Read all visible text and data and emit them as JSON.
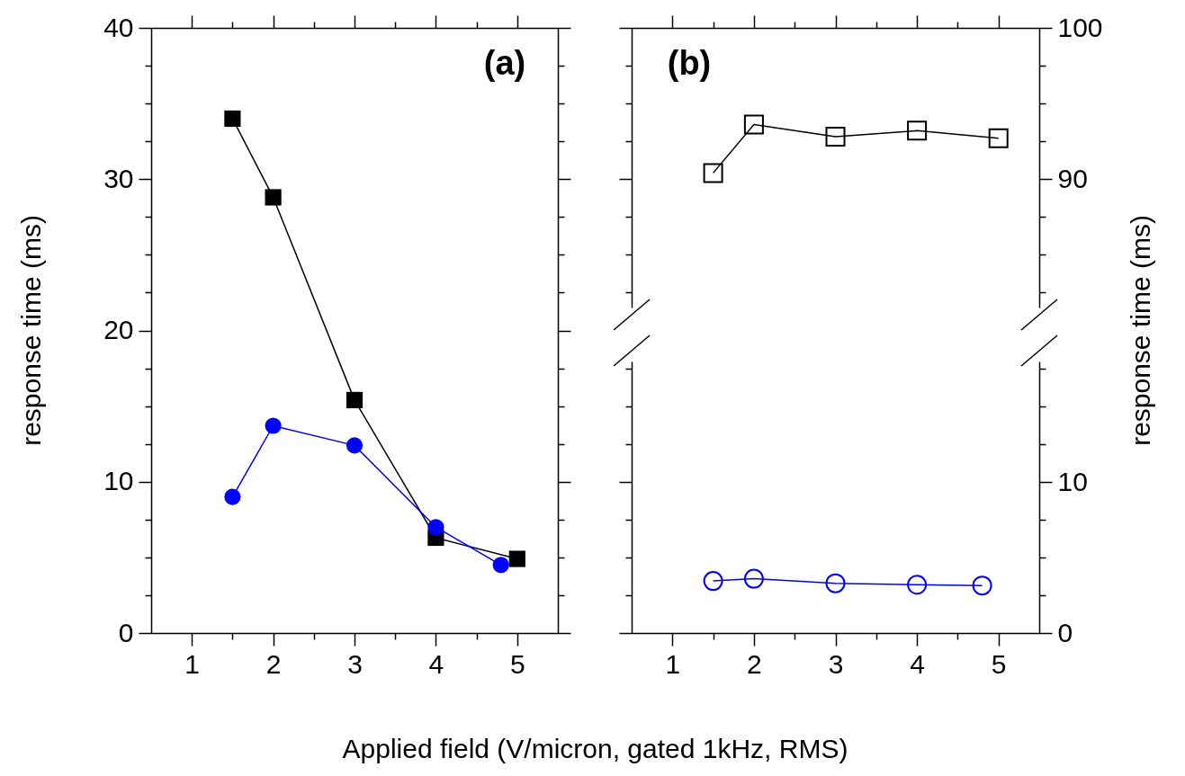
{
  "chart_data": [
    {
      "type": "line",
      "xlabel": "Applied field (V/micron, gated 1kHz, RMS)",
      "ylabel": "response time (ms)",
      "annotations": [
        "(a)"
      ],
      "xlim": [
        0.5,
        5.5
      ],
      "xticks": [
        1,
        {
          "value": 1.5,
          "label": null
        },
        2,
        {
          "value": 2.5,
          "label": null
        },
        3,
        {
          "value": 3.5,
          "label": null
        },
        4,
        {
          "value": 4.5,
          "label": null
        },
        5
      ],
      "ylim": [
        0,
        40
      ],
      "yticks": [
        0,
        {
          "value": 2.5,
          "label": null
        },
        {
          "value": 5,
          "label": null
        },
        {
          "value": 7.5,
          "label": null
        },
        10,
        {
          "value": 12.5,
          "label": null
        },
        {
          "value": 15,
          "label": null
        },
        {
          "value": 17.5,
          "label": null
        },
        20,
        {
          "value": 22.5,
          "label": null
        },
        {
          "value": 25,
          "label": null
        },
        {
          "value": 27.5,
          "label": null
        },
        30,
        {
          "value": 32.5,
          "label": null
        },
        {
          "value": 35,
          "label": null
        },
        {
          "value": 37.5,
          "label": null
        },
        40
      ],
      "grid": false,
      "legend": false,
      "series": [
        {
          "color": "#000000",
          "marker": "square",
          "x": [
            1.5,
            2,
            3,
            4,
            5
          ],
          "values": [
            34.0,
            28.8,
            15.4,
            6.3,
            4.9
          ]
        },
        {
          "color": "#0000ff",
          "marker": "circle",
          "x": [
            1.5,
            2,
            3,
            4,
            4.8
          ],
          "values": [
            9.0,
            13.7,
            12.4,
            7.0,
            4.5
          ]
        }
      ]
    },
    {
      "type": "line",
      "ylabel": "response time (ms)",
      "annotations": [
        "(b)"
      ],
      "xlim": [
        0.5,
        5.5
      ],
      "xticks": [
        1,
        {
          "value": 1.5,
          "label": null
        },
        2,
        {
          "value": 2.5,
          "label": null
        },
        3,
        {
          "value": 3.5,
          "label": null
        },
        4,
        {
          "value": 4.5,
          "label": null
        },
        5
      ],
      "ylim": [
        81.5,
        100
      ],
      "yticks": [
        {
          "value": 82.5,
          "label": null
        },
        {
          "value": 85,
          "label": null
        },
        {
          "value": 87.5,
          "label": null
        },
        90,
        {
          "value": 92.5,
          "label": null
        },
        {
          "value": 95,
          "label": null
        },
        {
          "value": 97.5,
          "label": null
        },
        100
      ],
      "tick_labels": "y",
      "grid": false,
      "legend": false,
      "series": [
        {
          "color": "#000000",
          "marker": "square",
          "x": [
            1.5,
            2,
            3,
            4,
            5
          ],
          "values": [
            90.4,
            93.6,
            92.8,
            93.2,
            92.7
          ]
        }
      ]
    },
    {
      "type": "line",
      "xlim": [
        0.5,
        5.5
      ],
      "xticks": [
        1,
        {
          "value": 1.5,
          "label": null
        },
        2,
        {
          "value": 2.5,
          "label": null
        },
        3,
        {
          "value": 3.5,
          "label": null
        },
        4,
        {
          "value": 4.5,
          "label": null
        },
        5
      ],
      "ylim": [
        0,
        18
      ],
      "yticks": [
        0,
        {
          "value": 2.5,
          "label": null
        },
        {
          "value": 5,
          "label": null
        },
        {
          "value": 7.5,
          "label": null
        },
        10,
        {
          "value": 12.5,
          "label": null
        },
        {
          "value": 15,
          "label": null
        },
        {
          "value": 17.5,
          "label": null
        }
      ],
      "grid": false,
      "legend": false,
      "series": [
        {
          "color": "#0000ff",
          "marker": "circle",
          "x": [
            1.5,
            2,
            3,
            4,
            4.8
          ],
          "values": [
            3.45,
            3.6,
            3.3,
            3.2,
            3.15
          ]
        }
      ]
    }
  ]
}
